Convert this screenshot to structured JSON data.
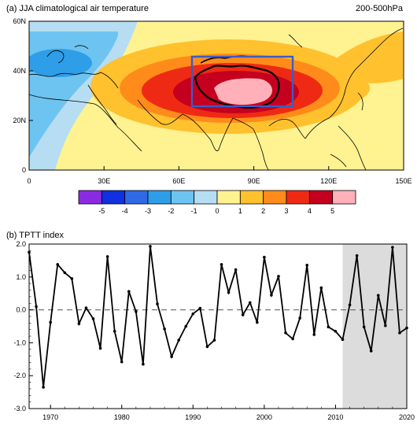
{
  "chart_data": [
    {
      "type": "heatmap",
      "title": "(a) JJA climatological air temperature",
      "subtitle": "200-500hPa",
      "x_ticks": [
        "0",
        "30E",
        "60E",
        "90E",
        "120E",
        "150E"
      ],
      "y_ticks": [
        "0",
        "20N",
        "40N",
        "60N"
      ],
      "xlim": [
        0,
        150
      ],
      "ylim": [
        0,
        60
      ],
      "colorbar": {
        "labels": [
          "-5",
          "-4",
          "-3",
          "-2",
          "-1",
          "0",
          "1",
          "2",
          "3",
          "4",
          "5"
        ],
        "colors": [
          "#8a2be2",
          "#1130e0",
          "#2f6ae6",
          "#2e9ee8",
          "#6ec4f0",
          "#b6ddf2",
          "#fff291",
          "#ffc12e",
          "#ff8c1a",
          "#ef2a14",
          "#c4001e",
          "#ffb0b8"
        ]
      },
      "box": {
        "lon": [
          65,
          105
        ],
        "lat": [
          25,
          45
        ],
        "color": "#3a5cc7"
      }
    },
    {
      "type": "line",
      "title": "(b) TPTT index",
      "x_ticks": [
        "1970",
        "1980",
        "1990",
        "2000",
        "2010",
        "2020"
      ],
      "y_ticks": [
        "-3.0",
        "-2.0",
        "-1.0",
        "0.0",
        "1.0",
        "2.0"
      ],
      "xlim": [
        1967,
        2020
      ],
      "ylim": [
        -3,
        2
      ],
      "shaded_range": [
        2011,
        2020
      ],
      "x": [
        1967,
        1968,
        1969,
        1970,
        1971,
        1972,
        1973,
        1974,
        1975,
        1976,
        1977,
        1978,
        1979,
        1980,
        1981,
        1982,
        1983,
        1984,
        1985,
        1986,
        1987,
        1988,
        1989,
        1990,
        1991,
        1992,
        1993,
        1994,
        1995,
        1996,
        1997,
        1998,
        1999,
        2000,
        2001,
        2002,
        2003,
        2004,
        2005,
        2006,
        2007,
        2008,
        2009,
        2010,
        2011,
        2012,
        2013,
        2014,
        2015,
        2016,
        2017,
        2018,
        2019,
        2020
      ],
      "values": [
        1.75,
        0.1,
        -2.35,
        -0.38,
        1.38,
        1.13,
        0.95,
        -0.42,
        0.06,
        -0.27,
        -1.17,
        1.62,
        -0.65,
        -1.58,
        0.56,
        -0.05,
        -1.65,
        1.93,
        0.18,
        -0.58,
        -1.42,
        -0.92,
        -0.5,
        -0.12,
        0.05,
        -1.12,
        -0.92,
        1.38,
        0.53,
        1.22,
        -0.15,
        0.22,
        -0.38,
        1.6,
        0.45,
        1.02,
        -0.7,
        -0.88,
        -0.25,
        1.36,
        -0.75,
        0.67,
        -0.52,
        -0.65,
        -0.9,
        0.15,
        1.65,
        -0.52,
        -1.25,
        0.44,
        -0.48,
        1.9,
        -0.7,
        -0.55
      ]
    }
  ]
}
